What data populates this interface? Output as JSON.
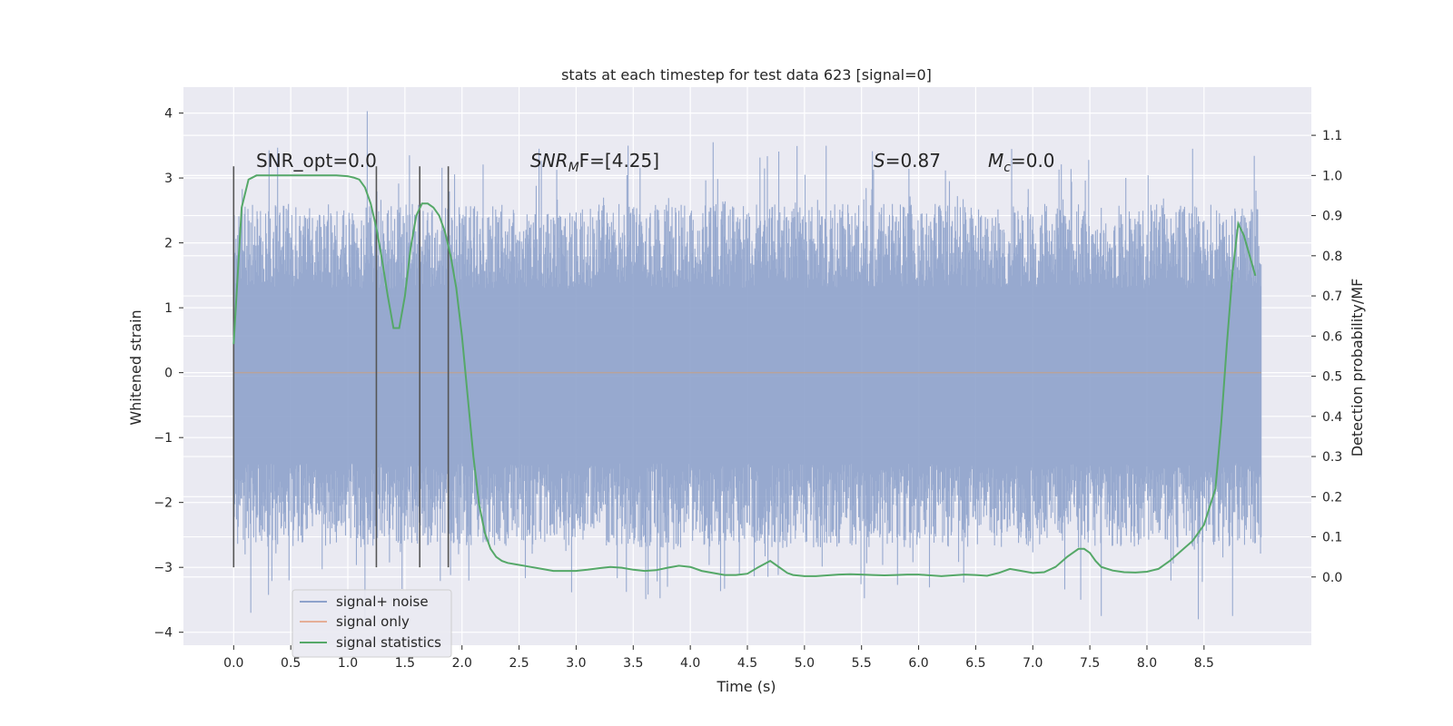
{
  "chart_data": {
    "type": "line",
    "title": "stats at each timestep for test data 623 [signal=0]",
    "xlabel": "Time (s)",
    "ylabel": "Whitened strain",
    "ylabel_right": "Detection probability/MF",
    "xlim": [
      -0.44,
      9.44
    ],
    "ylim": [
      -4.2,
      4.4
    ],
    "ylim_right": [
      -0.17,
      1.22
    ],
    "x_ticks": [
      "0.0",
      "0.5",
      "1.0",
      "1.5",
      "2.0",
      "2.5",
      "3.0",
      "3.5",
      "4.0",
      "4.5",
      "5.0",
      "5.5",
      "6.0",
      "6.5",
      "7.0",
      "7.5",
      "8.0",
      "8.5"
    ],
    "y_ticks": [
      "4",
      "3",
      "2",
      "1",
      "0",
      "−1",
      "−2",
      "−3",
      "−4"
    ],
    "y_ticks_right": [
      "1.1",
      "1.0",
      "0.9",
      "0.8",
      "0.7",
      "0.6",
      "0.5",
      "0.4",
      "0.3",
      "0.2",
      "0.1",
      "0.0"
    ],
    "grid": true,
    "legend_position": "lower-left",
    "legend": [
      {
        "label": "signal+ noise",
        "color": "#8ea2cb"
      },
      {
        "label": "signal only",
        "color": "#e5ae97"
      },
      {
        "label": "signal statistics",
        "color": "#55a868"
      }
    ],
    "annotations": {
      "snr_opt": "SNR_opt=0.0",
      "snr_mf_name": "SNR",
      "snr_mf_sub": "M",
      "snr_mf_rest": "F=[4.25]",
      "s_name": "S",
      "s_value": "=0.87",
      "mc_name": "M",
      "mc_sub": "c",
      "mc_value": "=0.0"
    },
    "noise_series": {
      "name": "signal+ noise",
      "x_range": [
        0.0,
        9.0
      ],
      "envelope_upper": 2.6,
      "envelope_lower": -2.7,
      "max": 4.03,
      "min": -3.8
    },
    "signal_series": {
      "name": "signal only",
      "values_constant": 0.0
    },
    "markers_x": [
      0.0,
      1.25,
      1.63,
      1.88
    ],
    "markers_y_range": [
      -3.0,
      3.18
    ],
    "statistics_series": {
      "name": "signal statistics",
      "axis": "right",
      "x": [
        0.0,
        0.07,
        0.13,
        0.2,
        0.3,
        0.4,
        0.5,
        0.6,
        0.7,
        0.8,
        0.9,
        1.0,
        1.05,
        1.1,
        1.15,
        1.2,
        1.25,
        1.3,
        1.35,
        1.4,
        1.45,
        1.5,
        1.55,
        1.6,
        1.65,
        1.7,
        1.75,
        1.8,
        1.85,
        1.9,
        1.95,
        2.0,
        2.05,
        2.1,
        2.15,
        2.2,
        2.25,
        2.3,
        2.35,
        2.4,
        2.5,
        2.6,
        2.7,
        2.8,
        2.9,
        3.0,
        3.1,
        3.2,
        3.3,
        3.4,
        3.5,
        3.6,
        3.7,
        3.8,
        3.9,
        4.0,
        4.1,
        4.2,
        4.3,
        4.4,
        4.5,
        4.6,
        4.7,
        4.75,
        4.8,
        4.85,
        4.9,
        5.0,
        5.1,
        5.2,
        5.3,
        5.4,
        5.5,
        5.6,
        5.7,
        5.8,
        5.9,
        6.0,
        6.1,
        6.2,
        6.3,
        6.4,
        6.5,
        6.6,
        6.7,
        6.8,
        6.9,
        7.0,
        7.1,
        7.2,
        7.3,
        7.4,
        7.45,
        7.5,
        7.55,
        7.6,
        7.7,
        7.8,
        7.9,
        8.0,
        8.1,
        8.2,
        8.3,
        8.4,
        8.5,
        8.6,
        8.65,
        8.7,
        8.75,
        8.8,
        8.85,
        8.9,
        8.95
      ],
      "y": [
        0.58,
        0.92,
        0.99,
        1.0,
        1.0,
        1.0,
        1.0,
        1.0,
        1.0,
        1.0,
        1.0,
        0.998,
        0.995,
        0.99,
        0.97,
        0.93,
        0.87,
        0.79,
        0.7,
        0.62,
        0.62,
        0.7,
        0.82,
        0.9,
        0.93,
        0.93,
        0.92,
        0.9,
        0.86,
        0.8,
        0.72,
        0.6,
        0.45,
        0.3,
        0.18,
        0.11,
        0.07,
        0.05,
        0.04,
        0.035,
        0.03,
        0.025,
        0.02,
        0.015,
        0.015,
        0.015,
        0.018,
        0.022,
        0.025,
        0.023,
        0.018,
        0.015,
        0.017,
        0.023,
        0.028,
        0.025,
        0.015,
        0.01,
        0.005,
        0.005,
        0.008,
        0.025,
        0.04,
        0.03,
        0.02,
        0.01,
        0.005,
        0.002,
        0.002,
        0.004,
        0.006,
        0.007,
        0.006,
        0.005,
        0.004,
        0.005,
        0.006,
        0.006,
        0.004,
        0.002,
        0.004,
        0.006,
        0.005,
        0.003,
        0.01,
        0.02,
        0.015,
        0.01,
        0.012,
        0.025,
        0.05,
        0.07,
        0.07,
        0.06,
        0.04,
        0.025,
        0.016,
        0.012,
        0.011,
        0.013,
        0.02,
        0.04,
        0.065,
        0.09,
        0.13,
        0.22,
        0.38,
        0.58,
        0.76,
        0.88,
        0.85,
        0.8,
        0.75
      ]
    }
  }
}
